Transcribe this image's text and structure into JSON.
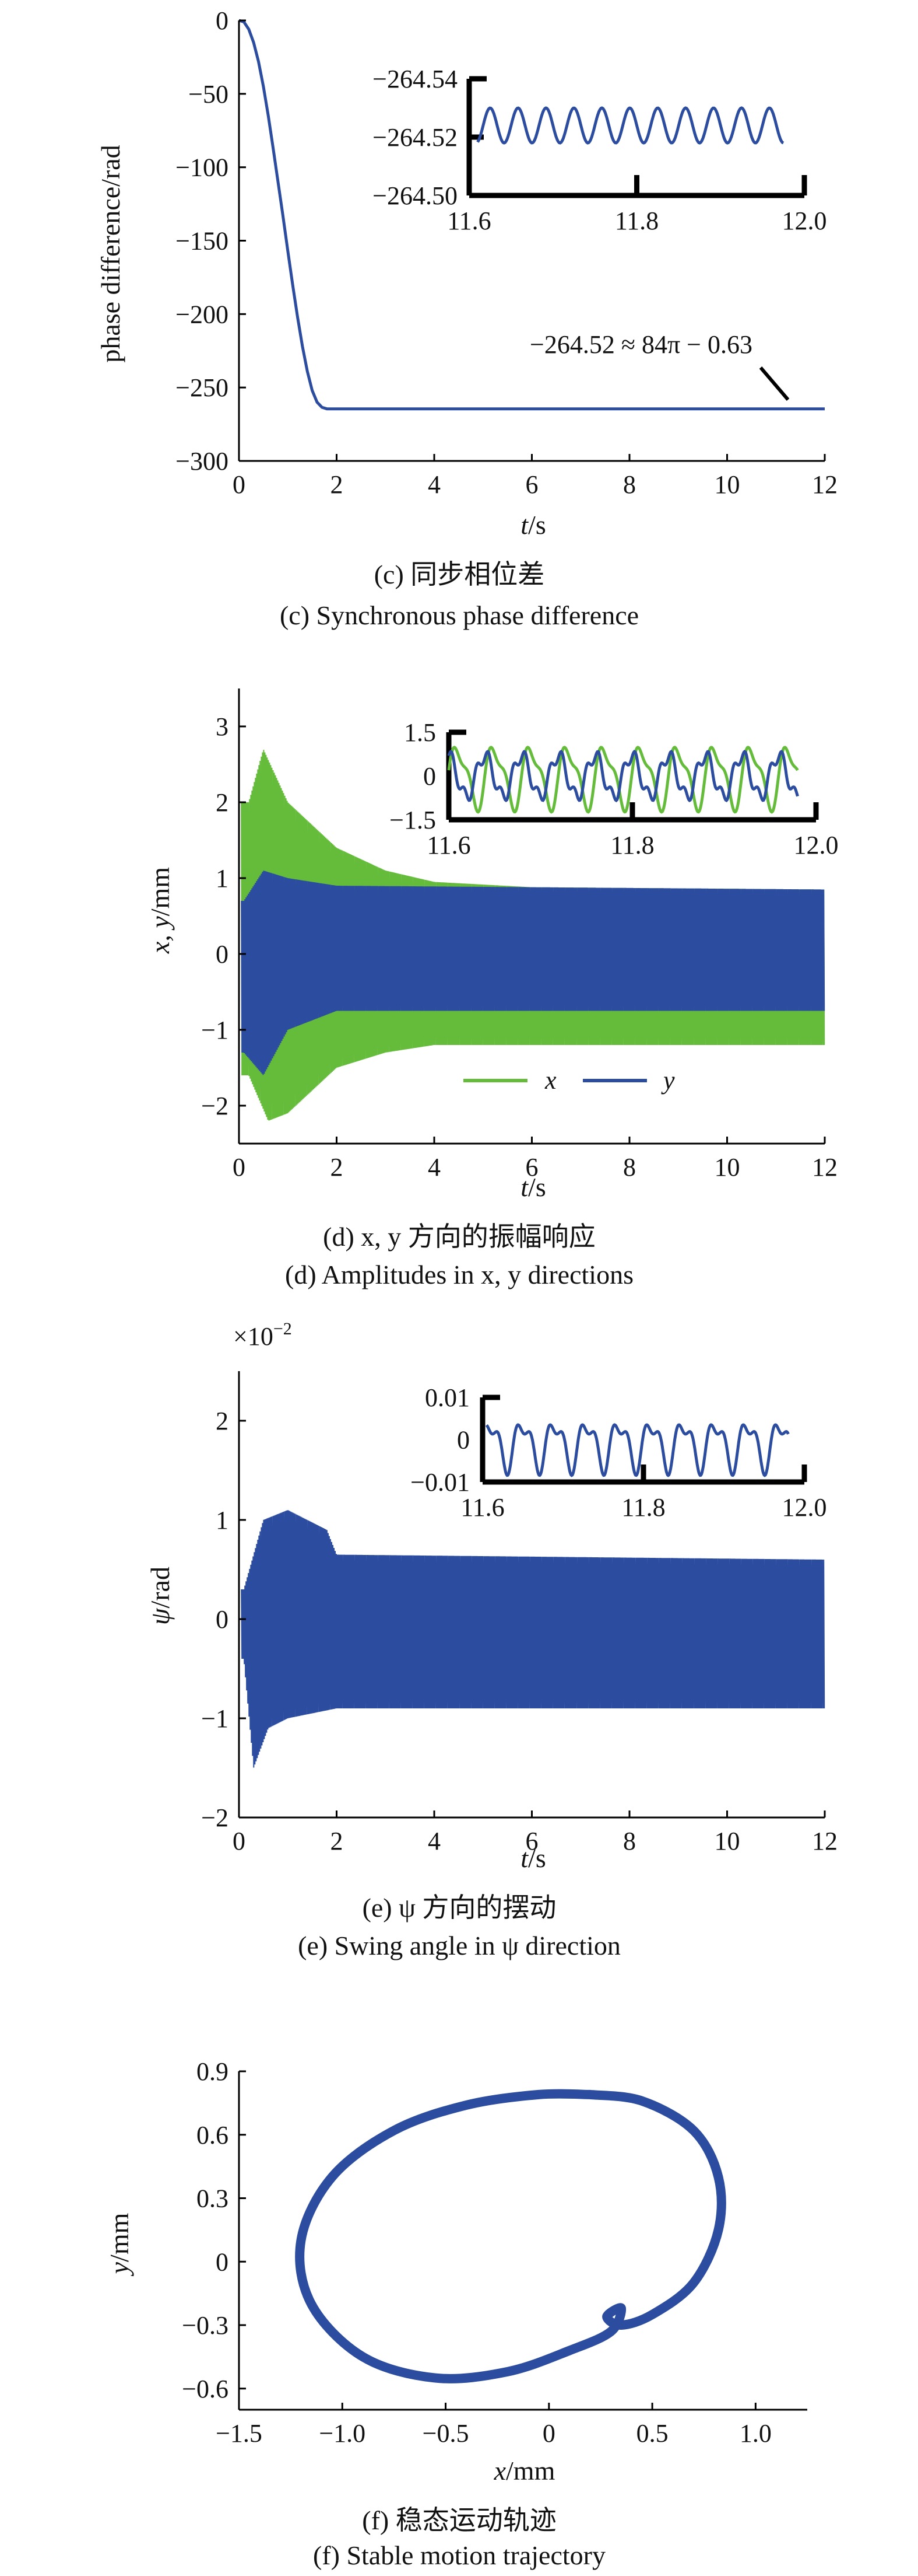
{
  "colors": {
    "blue": "#2b4c9f",
    "green": "#64bc3a",
    "axis": "#000000"
  },
  "chart_data": [
    {
      "id": "c",
      "type": "line",
      "ylabel": "phase difference/rad",
      "xlabel_var": "t",
      "xlabel_unit": "/s",
      "xlim": [
        0,
        12
      ],
      "ylim": [
        -300,
        0
      ],
      "xticks": [
        "0",
        "2",
        "4",
        "6",
        "8",
        "10",
        "12"
      ],
      "yticks": [
        "0",
        "−50",
        "−100",
        "−150",
        "−200",
        "−250",
        "−300"
      ],
      "series": [
        {
          "color": "#2b4c9f",
          "x": [
            0,
            0.1,
            0.2,
            0.3,
            0.4,
            0.5,
            0.6,
            0.7,
            0.8,
            0.9,
            1.0,
            1.1,
            1.2,
            1.3,
            1.4,
            1.5,
            1.6,
            1.7,
            1.8,
            1.9,
            2.0,
            4,
            6,
            8,
            10,
            12
          ],
          "y": [
            0,
            -1,
            -6,
            -15,
            -28,
            -45,
            -65,
            -87,
            -110,
            -133,
            -157,
            -180,
            -202,
            -222,
            -239,
            -252,
            -260,
            -263.5,
            -264.5,
            -264.52,
            -264.52,
            -264.52,
            -264.52,
            -264.52,
            -264.52,
            -264.52
          ]
        }
      ],
      "annotation": "−264.52 ≈ 84π − 0.63",
      "inset": {
        "xlim": [
          11.6,
          12.0
        ],
        "ylim": [
          -264.5,
          -264.54
        ],
        "xticks": [
          "11.6",
          "11.8",
          "12.0"
        ],
        "yticks": [
          "−264.54",
          "−264.52",
          "−264.50"
        ],
        "center": -264.524,
        "amplitude": 0.006,
        "cycles": 12
      },
      "caption_cn": "(c) 同步相位差",
      "caption_en": "(c) Synchronous phase difference"
    },
    {
      "id": "d",
      "type": "line",
      "ylabel_var": "x, y",
      "ylabel_unit": "/mm",
      "xlabel_var": "t",
      "xlabel_unit": "/s",
      "xlim": [
        0,
        12
      ],
      "ylim": [
        -2.5,
        3.5
      ],
      "xticks": [
        "0",
        "2",
        "4",
        "6",
        "8",
        "10",
        "12"
      ],
      "yticks": [
        "3",
        "2",
        "1",
        "0",
        "−1",
        "−2"
      ],
      "series": [
        {
          "name": "x",
          "color": "#64bc3a",
          "max_envelope": [
            [
              0.2,
              2.0
            ],
            [
              0.5,
              2.7
            ],
            [
              1.0,
              2.0
            ],
            [
              2.0,
              1.4
            ],
            [
              3,
              1.1
            ],
            [
              4,
              0.95
            ],
            [
              6,
              0.88
            ],
            [
              12,
              0.85
            ]
          ],
          "min_envelope": [
            [
              0.2,
              -1.6
            ],
            [
              0.6,
              -2.2
            ],
            [
              1.0,
              -2.1
            ],
            [
              2.0,
              -1.5
            ],
            [
              3,
              -1.3
            ],
            [
              4,
              -1.2
            ],
            [
              12,
              -1.2
            ]
          ]
        },
        {
          "name": "y",
          "color": "#2b4c9f",
          "max_envelope": [
            [
              0.1,
              0.7
            ],
            [
              0.5,
              1.1
            ],
            [
              1.0,
              1.0
            ],
            [
              2.0,
              0.9
            ],
            [
              12,
              0.85
            ]
          ],
          "min_envelope": [
            [
              0.1,
              -1.3
            ],
            [
              0.5,
              -1.6
            ],
            [
              1.0,
              -1.0
            ],
            [
              2.0,
              -0.75
            ],
            [
              12,
              -0.75
            ]
          ]
        }
      ],
      "inset": {
        "xlim": [
          11.6,
          12.0
        ],
        "ylim": [
          -1.5,
          1.5
        ],
        "xticks": [
          "11.6",
          "11.8",
          "12.0"
        ],
        "yticks": [
          "1.5",
          "0",
          "−1.5"
        ],
        "cycles": 10
      },
      "caption_cn": "(d) x, y 方向的振幅响应",
      "caption_en": "(d) Amplitudes in x, y directions"
    },
    {
      "id": "e",
      "type": "line",
      "ylabel_var": "ψ",
      "ylabel_unit": "/rad",
      "xlabel_var": "t",
      "xlabel_unit": "/s",
      "scale_label": "×10",
      "scale_exp": "−2",
      "xlim": [
        0,
        12
      ],
      "ylim": [
        -2,
        2.5
      ],
      "xticks": [
        "0",
        "2",
        "4",
        "6",
        "8",
        "10",
        "12"
      ],
      "yticks": [
        "2",
        "1",
        "0",
        "−1",
        "−2"
      ],
      "series": [
        {
          "color": "#2b4c9f",
          "max_envelope": [
            [
              0.1,
              0.3
            ],
            [
              0.5,
              1.0
            ],
            [
              1.0,
              1.1
            ],
            [
              1.8,
              0.9
            ],
            [
              2.0,
              0.65
            ],
            [
              12,
              0.6
            ]
          ],
          "min_envelope": [
            [
              0.1,
              -0.4
            ],
            [
              0.3,
              -1.5
            ],
            [
              0.6,
              -1.1
            ],
            [
              1.0,
              -1.0
            ],
            [
              2.0,
              -0.9
            ],
            [
              12,
              -0.9
            ]
          ]
        }
      ],
      "inset": {
        "xlim": [
          11.6,
          12.0
        ],
        "ylim": [
          -0.01,
          0.01
        ],
        "xticks": [
          "11.6",
          "11.8",
          "12.0"
        ],
        "yticks": [
          "0.01",
          "0",
          "−0.01"
        ],
        "cycles": 10
      },
      "caption_cn": "(e) ψ 方向的摆动",
      "caption_en": "(e) Swing angle in ψ direction"
    },
    {
      "id": "f",
      "type": "scatter",
      "xlabel_var": "x",
      "xlabel_unit": "/mm",
      "ylabel_var": "y",
      "ylabel_unit": "/mm",
      "xlim": [
        -1.5,
        1.25
      ],
      "ylim": [
        -0.7,
        0.9
      ],
      "xticks": [
        "−1.5",
        "−1.0",
        "−0.5",
        "0",
        "0.5",
        "1.0"
      ],
      "yticks": [
        "0.9",
        "0.6",
        "0.3",
        "0",
        "−0.3",
        "−0.6"
      ],
      "trajectory": {
        "x": [
          0.2,
          0.45,
          0.7,
          0.82,
          0.82,
          0.7,
          0.5,
          0.35,
          0.28,
          0.35,
          0.3,
          0.1,
          -0.2,
          -0.55,
          -0.9,
          -1.15,
          -1.2,
          -1.05,
          -0.75,
          -0.4,
          -0.05,
          0.2
        ],
        "y": [
          0.79,
          0.76,
          0.62,
          0.4,
          0.15,
          -0.1,
          -0.25,
          -0.3,
          -0.26,
          -0.22,
          -0.33,
          -0.42,
          -0.52,
          -0.55,
          -0.45,
          -0.2,
          0.1,
          0.4,
          0.62,
          0.74,
          0.79,
          0.79
        ]
      },
      "caption_cn": "(f) 稳态运动轨迹",
      "caption_en": "(f) Stable motion trajectory"
    }
  ]
}
